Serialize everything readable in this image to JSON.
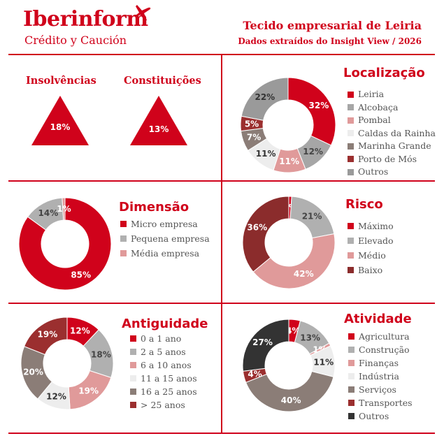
{
  "header": {
    "brand": "Iberinform",
    "brand_sub": "Crédito y Caución",
    "title": "Tecido empresarial de Leiria",
    "subtitle": "Dados extraídos do Insight View / 2026"
  },
  "kpis": [
    {
      "label": "Insolvências",
      "value": "18%"
    },
    {
      "label": "Constituições",
      "value": "13%"
    }
  ],
  "chart_data": [
    {
      "id": "localizacao",
      "type": "pie",
      "title": "Localização",
      "categories": [
        "Leiria",
        "Alcobaça",
        "Pombal",
        "Caldas da Rainha",
        "Marinha Grande",
        "Porto de Mós",
        "Outros"
      ],
      "values": [
        32,
        12,
        11,
        11,
        7,
        5,
        22
      ],
      "labels": [
        "32%",
        "12%",
        "11%",
        "11%",
        "7%",
        "5%",
        "22%"
      ],
      "colors": [
        "#d0021b",
        "#a6a6a6",
        "#e09a9a",
        "#ededed",
        "#8b7d77",
        "#9b2f2f",
        "#9a9a9a"
      ],
      "label_colors": [
        "#ffffff",
        "#444444",
        "#ffffff",
        "#333333",
        "#ffffff",
        "#ffffff",
        "#333333"
      ]
    },
    {
      "id": "dimensao",
      "type": "pie",
      "title": "Dimensão",
      "categories": [
        "Micro empresa",
        "Pequena empresa",
        "Média empresa"
      ],
      "values": [
        85,
        14,
        1
      ],
      "labels": [
        "85%",
        "14%",
        "1%"
      ],
      "colors": [
        "#d0021b",
        "#b0b0b0",
        "#e09a9a"
      ],
      "label_colors": [
        "#ffffff",
        "#444444",
        "#ffffff"
      ]
    },
    {
      "id": "risco",
      "type": "pie",
      "title": "Risco",
      "categories": [
        "Máximo",
        "Elevado",
        "Médio",
        "Baixo"
      ],
      "values": [
        1,
        21,
        42,
        36
      ],
      "labels": [
        "1%",
        "21%",
        "42%",
        "36%"
      ],
      "colors": [
        "#d0021b",
        "#b0b0b0",
        "#e09a9a",
        "#8b2c2c"
      ],
      "label_colors": [
        "#ffffff",
        "#444444",
        "#ffffff",
        "#ffffff"
      ]
    },
    {
      "id": "antiguidade",
      "type": "pie",
      "title": "Antiguidade",
      "categories": [
        "0 a 1 ano",
        "2 a 5 anos",
        "6 a 10 anos",
        "11 a 15 anos",
        "16 a 25 anos",
        "> 25 anos"
      ],
      "values": [
        12,
        18,
        19,
        12,
        20,
        19
      ],
      "labels": [
        "12%",
        "18%",
        "19%",
        "12%",
        "20%",
        "19%"
      ],
      "colors": [
        "#d0021b",
        "#b0b0b0",
        "#e09a9a",
        "#ededed",
        "#8b7d77",
        "#9b2f2f"
      ],
      "label_colors": [
        "#ffffff",
        "#444444",
        "#ffffff",
        "#333333",
        "#ffffff",
        "#ffffff"
      ]
    },
    {
      "id": "atividade",
      "type": "pie",
      "title": "Atividade",
      "categories": [
        "Agricultura",
        "Construção",
        "Finanças",
        "Indústria",
        "Serviços",
        "Transportes",
        "Outros"
      ],
      "values": [
        4,
        13,
        1,
        11,
        40,
        4,
        27
      ],
      "labels": [
        "4%",
        "13%",
        "1%",
        "11%",
        "40%",
        "4%",
        "27%"
      ],
      "colors": [
        "#d0021b",
        "#b0b0b0",
        "#e09a9a",
        "#ededed",
        "#8b7d77",
        "#9b2f2f",
        "#333333"
      ],
      "label_colors": [
        "#ffffff",
        "#444444",
        "#ffffff",
        "#333333",
        "#ffffff",
        "#ffffff",
        "#ffffff"
      ]
    }
  ]
}
